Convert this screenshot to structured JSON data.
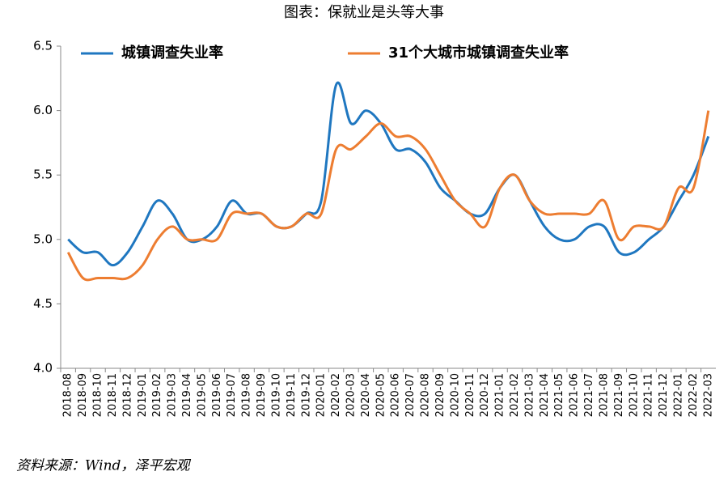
{
  "chart_data": {
    "type": "line",
    "title": "图表：保就业是头等大事",
    "source": "资料来源：Wind，泽平宏观",
    "categories": [
      "2018-08",
      "2018-09",
      "2018-10",
      "2018-11",
      "2018-12",
      "2019-01",
      "2019-02",
      "2019-03",
      "2019-04",
      "2019-05",
      "2019-06",
      "2019-07",
      "2019-08",
      "2019-09",
      "2019-10",
      "2019-11",
      "2019-12",
      "2020-01",
      "2020-02",
      "2020-03",
      "2020-04",
      "2020-05",
      "2020-06",
      "2020-07",
      "2020-08",
      "2020-09",
      "2020-10",
      "2020-11",
      "2020-12",
      "2021-01",
      "2021-02",
      "2021-03",
      "2021-04",
      "2021-05",
      "2021-06",
      "2021-07",
      "2021-08",
      "2021-09",
      "2021-10",
      "2021-11",
      "2021-12",
      "2022-01",
      "2022-02",
      "2022-03"
    ],
    "series": [
      {
        "name": "城镇调查失业率",
        "color": "#1f77c0",
        "values": [
          5.0,
          4.9,
          4.9,
          4.8,
          4.9,
          5.1,
          5.3,
          5.2,
          5.0,
          5.0,
          5.1,
          5.3,
          5.2,
          5.2,
          5.1,
          5.1,
          5.2,
          5.3,
          6.2,
          5.9,
          6.0,
          5.9,
          5.7,
          5.7,
          5.6,
          5.4,
          5.3,
          5.2,
          5.2,
          5.4,
          5.5,
          5.3,
          5.1,
          5.0,
          5.0,
          5.1,
          5.1,
          4.9,
          4.9,
          5.0,
          5.1,
          5.3,
          5.5,
          5.8
        ]
      },
      {
        "name": "31个大城市城镇调查失业率",
        "color": "#ed7d31",
        "values": [
          4.9,
          4.7,
          4.7,
          4.7,
          4.7,
          4.8,
          5.0,
          5.1,
          5.0,
          5.0,
          5.0,
          5.2,
          5.2,
          5.2,
          5.1,
          5.1,
          5.2,
          5.2,
          5.7,
          5.7,
          5.8,
          5.9,
          5.8,
          5.8,
          5.7,
          5.5,
          5.3,
          5.2,
          5.1,
          5.4,
          5.5,
          5.3,
          5.2,
          5.2,
          5.2,
          5.2,
          5.3,
          5.0,
          5.1,
          5.1,
          5.1,
          5.4,
          5.4,
          6.0
        ]
      }
    ],
    "ylim": [
      4.0,
      6.5
    ],
    "yticks": [
      {
        "value": 4.0,
        "label": "4.0"
      },
      {
        "value": 4.5,
        "label": "4.5"
      },
      {
        "value": 5.0,
        "label": "5.0"
      },
      {
        "value": 5.5,
        "label": "5.5"
      },
      {
        "value": 6.0,
        "label": "6.0"
      },
      {
        "value": 6.5,
        "label": "6.5"
      }
    ],
    "legend": "top-left"
  }
}
